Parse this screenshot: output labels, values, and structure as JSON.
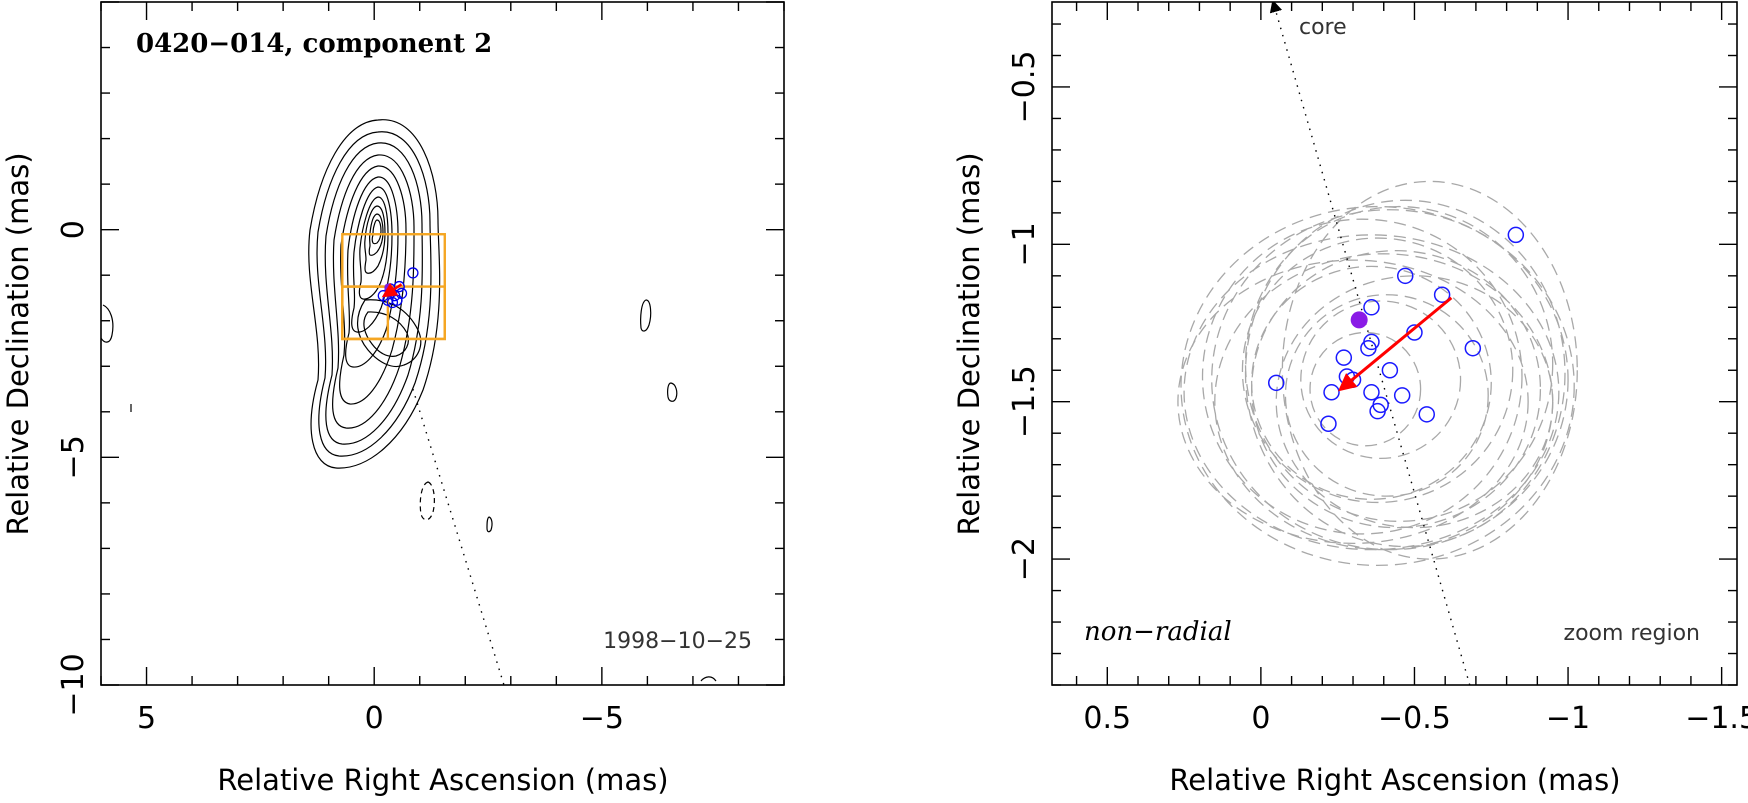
{
  "chart_data": [
    {
      "type": "contour",
      "title": "0420−014, component 2",
      "date_label": "1998−10−25",
      "xlabel": "Relative Right Ascension (mas)",
      "ylabel": "Relative Declination (mas)",
      "xlim": [
        6,
        -9
      ],
      "ylim": [
        -10,
        5
      ],
      "xticks": [
        5,
        0,
        -5
      ],
      "xtick_labels": [
        "5",
        "0",
        "−5"
      ],
      "yticks": [
        0,
        -5,
        -10
      ],
      "ytick_labels": [
        "0",
        "−5",
        "−10"
      ],
      "component_positions": [
        {
          "x": -0.35,
          "y": -1.3
        },
        {
          "x": -0.55,
          "y": -1.25
        },
        {
          "x": -0.45,
          "y": -1.45
        },
        {
          "x": -0.3,
          "y": -1.55
        },
        {
          "x": -0.6,
          "y": -1.4
        },
        {
          "x": -0.4,
          "y": -1.6
        },
        {
          "x": -0.2,
          "y": -1.45
        },
        {
          "x": -0.85,
          "y": -0.95
        },
        {
          "x": -0.5,
          "y": -1.55
        }
      ],
      "mean_position": {
        "x": -0.31,
        "y": -1.27
      },
      "motion_vector": {
        "from": {
          "x": -0.6,
          "y": -1.2
        },
        "to": {
          "x": -0.22,
          "y": -1.45
        }
      },
      "zoom_boxes": [
        {
          "x0": 0.7,
          "x1": -1.55,
          "y0": -2.4,
          "y1": -0.1
        },
        {
          "x0": 0.7,
          "x1": -1.55,
          "y0": -2.4,
          "y1": -1.25
        },
        {
          "x0": 0.7,
          "x1": -0.3,
          "y0": -2.4,
          "y1": -1.25
        }
      ],
      "core_direction_line": {
        "from": {
          "x": -0.85,
          "y": -3.5
        },
        "to": {
          "x": -2.85,
          "y": -10
        }
      }
    },
    {
      "type": "scatter",
      "xlabel": "Relative Right Ascension (mas)",
      "ylabel": "Relative Declination (mas)",
      "xlim": [
        0.68,
        -1.55
      ],
      "ylim": [
        -2.4,
        -0.23
      ],
      "xticks": [
        0.5,
        0,
        -0.5,
        -1,
        -1.5
      ],
      "xtick_labels": [
        "0.5",
        "0",
        "−0.5",
        "−1",
        "−1.5"
      ],
      "yticks": [
        -0.5,
        -1,
        -1.5,
        -2
      ],
      "ytick_labels": [
        "−0.5",
        "−1",
        "−1.5",
        "−2"
      ],
      "core_label": "core",
      "mode_label": "non−radial",
      "region_label": "zoom region",
      "points": [
        {
          "x": -0.83,
          "y": -0.97
        },
        {
          "x": -0.47,
          "y": -1.1
        },
        {
          "x": -0.59,
          "y": -1.16
        },
        {
          "x": -0.36,
          "y": -1.2
        },
        {
          "x": -0.5,
          "y": -1.28
        },
        {
          "x": -0.69,
          "y": -1.33
        },
        {
          "x": -0.36,
          "y": -1.31
        },
        {
          "x": -0.35,
          "y": -1.33
        },
        {
          "x": -0.27,
          "y": -1.36
        },
        {
          "x": -0.42,
          "y": -1.4
        },
        {
          "x": -0.28,
          "y": -1.42
        },
        {
          "x": -0.3,
          "y": -1.43
        },
        {
          "x": -0.05,
          "y": -1.44
        },
        {
          "x": -0.36,
          "y": -1.47
        },
        {
          "x": -0.46,
          "y": -1.48
        },
        {
          "x": -0.23,
          "y": -1.47
        },
        {
          "x": -0.39,
          "y": -1.51
        },
        {
          "x": -0.38,
          "y": -1.53
        },
        {
          "x": -0.54,
          "y": -1.54
        },
        {
          "x": -0.22,
          "y": -1.57
        }
      ],
      "mean_point": {
        "x": -0.32,
        "y": -1.24
      },
      "motion_vector": {
        "from": {
          "x": -0.62,
          "y": -1.17
        },
        "to": {
          "x": -0.26,
          "y": -1.46
        }
      },
      "core_direction_line": {
        "from": {
          "x": -0.68,
          "y": -2.4
        },
        "to": {
          "x": -0.04,
          "y": -0.23
        }
      },
      "uncertainty_ellipses": [
        {
          "cx": -0.38,
          "cy": -1.45,
          "rx": 0.64,
          "ry": 0.57
        },
        {
          "cx": -0.42,
          "cy": -1.43,
          "rx": 0.58,
          "ry": 0.54
        },
        {
          "cx": -0.36,
          "cy": -1.47,
          "rx": 0.61,
          "ry": 0.5
        },
        {
          "cx": -0.47,
          "cy": -1.41,
          "rx": 0.52,
          "ry": 0.55
        },
        {
          "cx": -0.4,
          "cy": -1.5,
          "rx": 0.55,
          "ry": 0.47
        },
        {
          "cx": -0.33,
          "cy": -1.42,
          "rx": 0.52,
          "ry": 0.5
        },
        {
          "cx": -0.44,
          "cy": -1.46,
          "rx": 0.47,
          "ry": 0.44
        },
        {
          "cx": -0.38,
          "cy": -1.4,
          "rx": 0.44,
          "ry": 0.42
        },
        {
          "cx": -0.36,
          "cy": -1.44,
          "rx": 0.39,
          "ry": 0.37
        },
        {
          "cx": -0.41,
          "cy": -1.48,
          "rx": 0.33,
          "ry": 0.32
        },
        {
          "cx": -0.39,
          "cy": -1.43,
          "rx": 0.26,
          "ry": 0.25
        },
        {
          "cx": -0.34,
          "cy": -1.46,
          "rx": 0.18,
          "ry": 0.18
        },
        {
          "cx": -0.55,
          "cy": -1.4,
          "rx": 0.48,
          "ry": 0.6
        },
        {
          "cx": -0.3,
          "cy": -1.5,
          "rx": 0.57,
          "ry": 0.45
        },
        {
          "cx": -0.45,
          "cy": -1.38,
          "rx": 0.5,
          "ry": 0.5
        },
        {
          "cx": -0.5,
          "cy": -1.5,
          "rx": 0.45,
          "ry": 0.4
        }
      ]
    }
  ]
}
